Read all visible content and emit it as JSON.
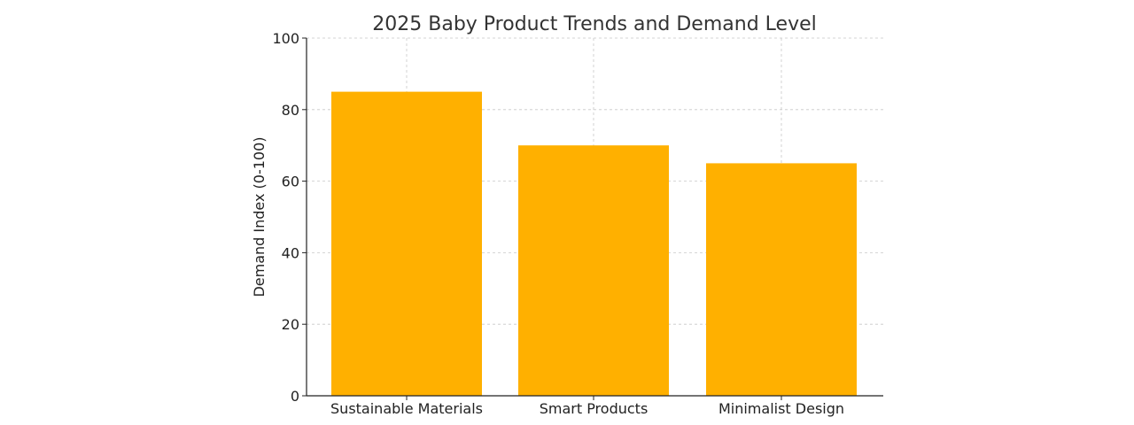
{
  "colors": {
    "bar": "#FFB000",
    "background": "#ffffff"
  },
  "chart_data": {
    "type": "bar",
    "title": "2025 Baby Product Trends and Demand Level",
    "xlabel": "",
    "ylabel": "Demand Index (0-100)",
    "categories": [
      "Sustainable Materials",
      "Smart Products",
      "Minimalist Design"
    ],
    "values": [
      85,
      70,
      65
    ],
    "ylim": [
      0,
      100
    ],
    "yticks": [
      0,
      20,
      40,
      60,
      80,
      100
    ],
    "grid": true,
    "legend": "none"
  }
}
